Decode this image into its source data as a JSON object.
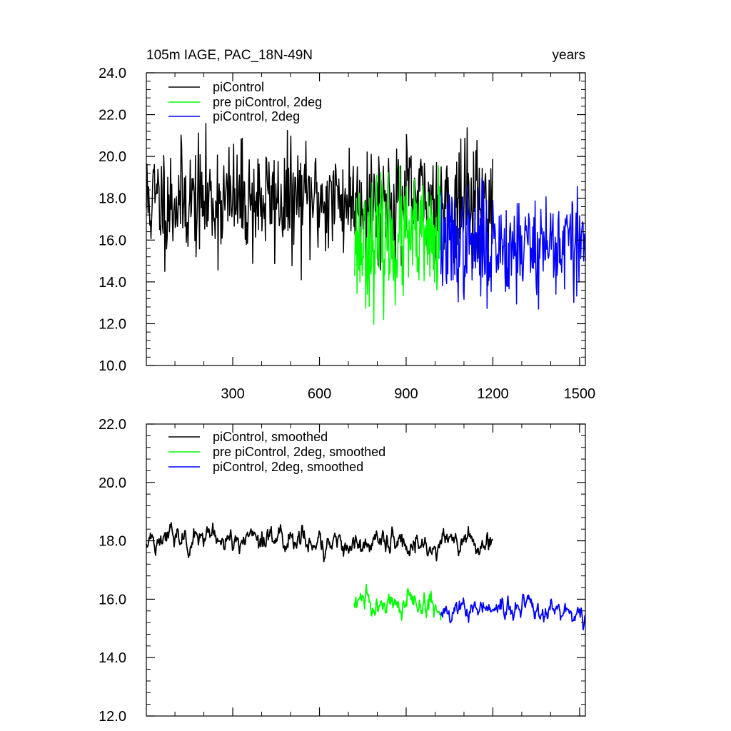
{
  "chart_data": [
    {
      "type": "line",
      "title_left": "105m IAGE, PAC_18N-49N",
      "title_right": "years",
      "xlim": [
        1,
        1520
      ],
      "ylim": [
        10,
        24
      ],
      "x_ticks": [
        300,
        600,
        900,
        1200,
        1500
      ],
      "x_tick_labels": [
        "300",
        "600",
        "900",
        "1200",
        "1500"
      ],
      "y_ticks": [
        10,
        12,
        14,
        16,
        18,
        20,
        22,
        24
      ],
      "y_tick_labels": [
        "10.0",
        "12.0",
        "14.0",
        "16.0",
        "18.0",
        "20.0",
        "22.0",
        "24.0"
      ],
      "legend_position": "top-left",
      "series": [
        {
          "name": "piControl",
          "color": "#000000",
          "x_range": [
            1,
            1200
          ],
          "mean": 17.9,
          "spread": 1.35,
          "smoothed": false,
          "seed": 11
        },
        {
          "name": "pre piControl, 2deg",
          "color": "#00ff00",
          "x_range": [
            720,
            1020
          ],
          "mean": 15.9,
          "spread": 1.45,
          "smoothed": false,
          "seed": 23
        },
        {
          "name": "piControl, 2deg",
          "color": "#0000ff",
          "x_range": [
            1020,
            1520
          ],
          "mean": 15.8,
          "spread": 1.3,
          "smoothed": false,
          "seed": 37
        }
      ]
    },
    {
      "type": "line",
      "xlim": [
        1,
        1520
      ],
      "ylim": [
        12,
        22
      ],
      "x_ticks": [
        300,
        600,
        900,
        1200,
        1500
      ],
      "y_ticks": [
        12,
        14,
        16,
        18,
        20,
        22
      ],
      "y_tick_labels": [
        "12.0",
        "14.0",
        "16.0",
        "18.0",
        "20.0",
        "22.0"
      ],
      "legend_position": "top-left",
      "series": [
        {
          "name": "piControl, smoothed",
          "color": "#000000",
          "x_range": [
            1,
            1200
          ],
          "mean": 18.0,
          "spread": 0.55,
          "smoothed": true,
          "seed": 51
        },
        {
          "name": "pre piControl, 2deg, smoothed",
          "color": "#00ff00",
          "x_range": [
            720,
            1020
          ],
          "mean": 15.8,
          "spread": 0.6,
          "smoothed": true,
          "seed": 63
        },
        {
          "name": "piControl, 2deg, smoothed",
          "color": "#0000ff",
          "x_range": [
            1020,
            1520
          ],
          "mean": 15.6,
          "spread": 0.5,
          "smoothed": true,
          "seed": 77
        }
      ]
    }
  ]
}
